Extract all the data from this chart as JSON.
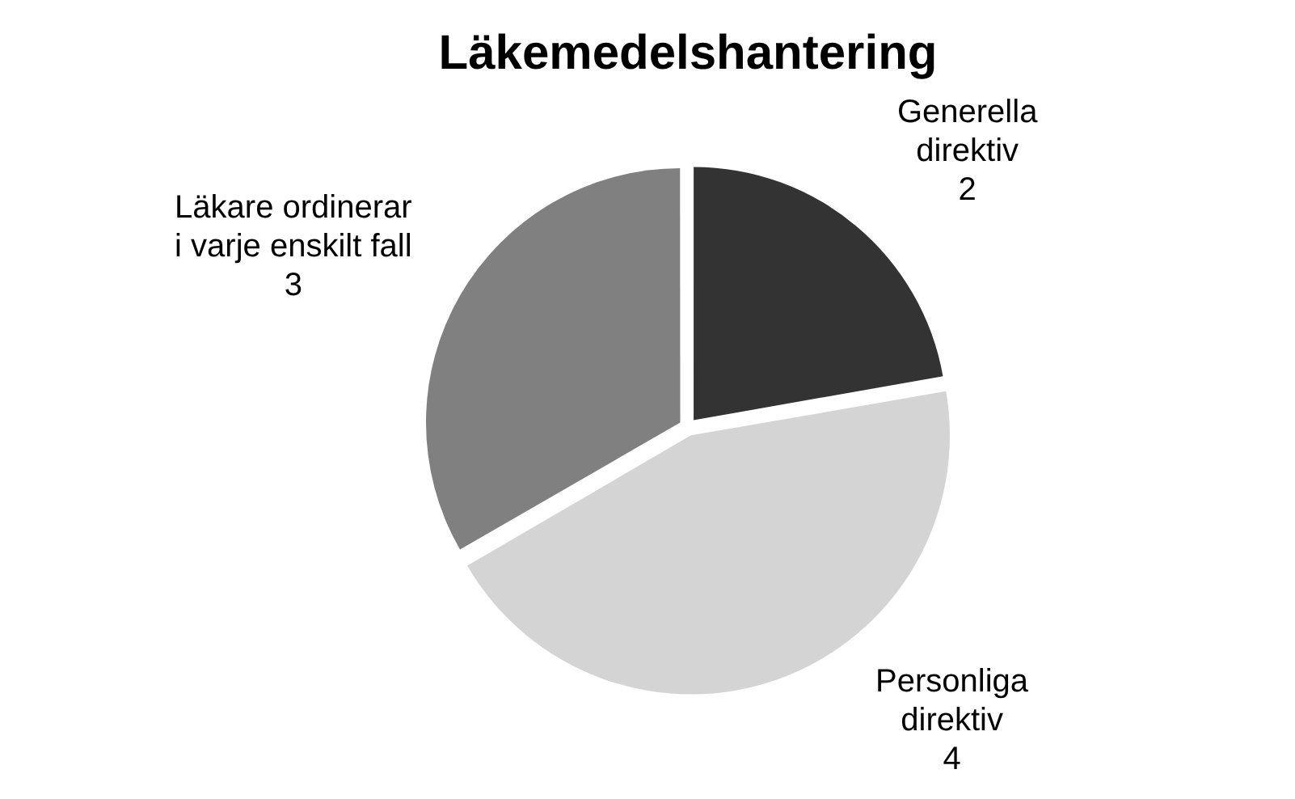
{
  "chart_data": {
    "type": "pie",
    "title": "Läkemedelshantering",
    "categories": [
      "Generella direktiv",
      "Personliga direktiv",
      "Läkare ordinerar i varje enskilt fall"
    ],
    "values": [
      2,
      4,
      3
    ],
    "colors": [
      "#333333",
      "#d4d4d4",
      "#808080"
    ],
    "data_labels": true,
    "legend": false
  }
}
